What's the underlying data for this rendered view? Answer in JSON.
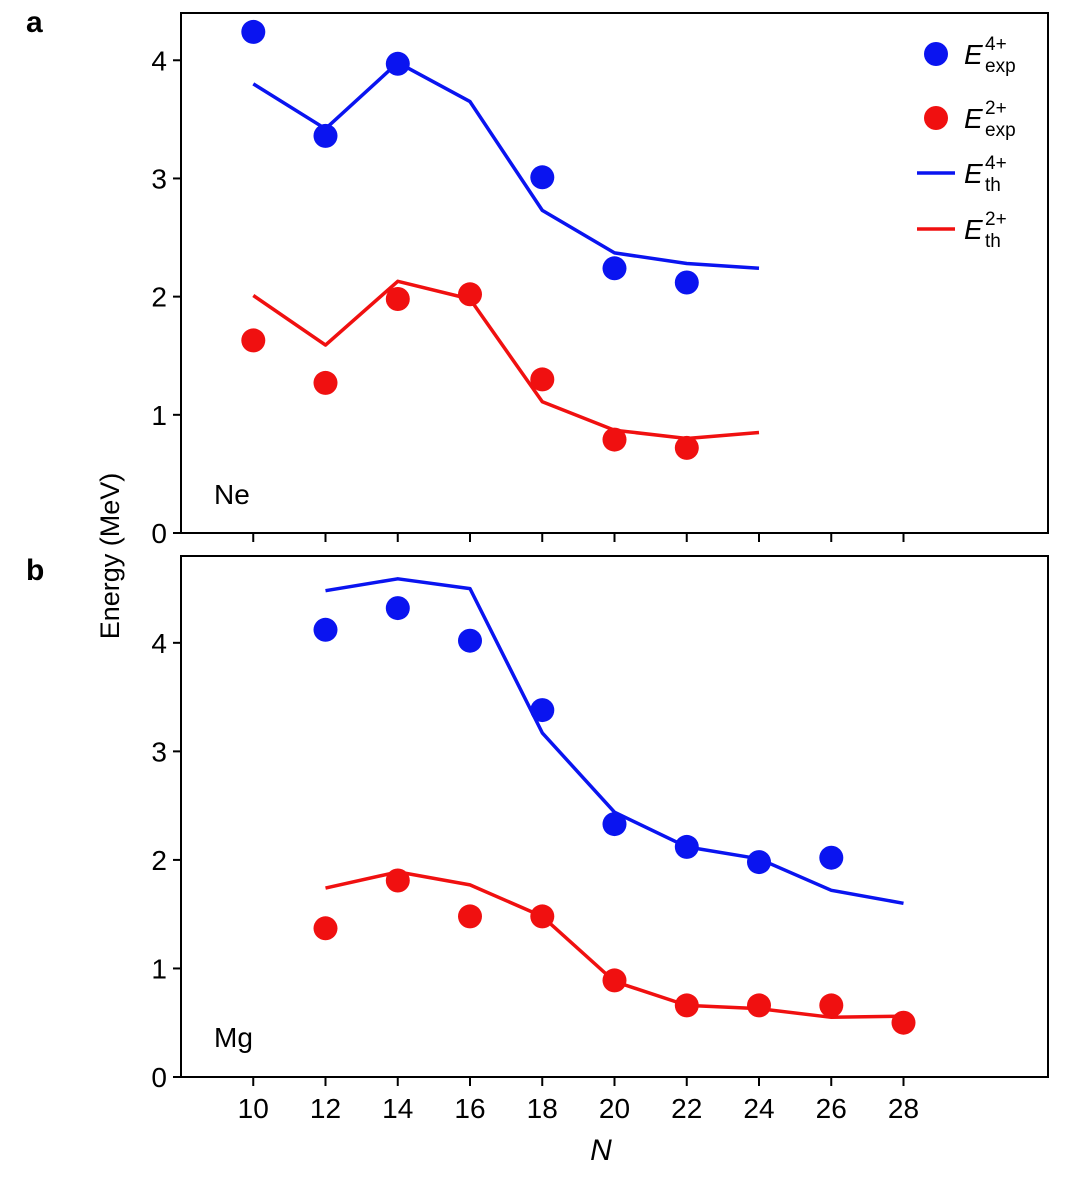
{
  "chart_data": {
    "type": "line",
    "shared_ylabel": "Energy (MeV)",
    "shared_xlabel": "N",
    "xlim": [
      8,
      32
    ],
    "x_ticks": [
      10,
      12,
      14,
      16,
      18,
      20,
      22,
      24,
      26,
      28
    ],
    "legend": {
      "placement": "top-right",
      "entries": [
        {
          "marker": "circle",
          "color": "#0a14f0",
          "main": "E",
          "sup": "4+",
          "sub": "exp"
        },
        {
          "marker": "circle",
          "color": "#f01010",
          "main": "E",
          "sup": "2+",
          "sub": "exp"
        },
        {
          "marker": "line",
          "color": "#0a14f0",
          "main": "E",
          "sup": "4+",
          "sub": "th"
        },
        {
          "marker": "line",
          "color": "#f01010",
          "main": "E",
          "sup": "2+",
          "sub": "th"
        }
      ]
    },
    "panels": [
      {
        "letter": "a",
        "label": "Ne",
        "ylim": [
          0,
          4.4
        ],
        "y_ticks": [
          0,
          1,
          2,
          3,
          4
        ],
        "series": [
          {
            "name": "E4+ exp",
            "kind": "scatter",
            "color": "#0a14f0",
            "x": [
              10,
              12,
              14,
              18,
              20,
              22
            ],
            "y": [
              4.24,
              3.36,
              3.97,
              3.01,
              2.24,
              2.12
            ]
          },
          {
            "name": "E2+ exp",
            "kind": "scatter",
            "color": "#f01010",
            "x": [
              10,
              12,
              14,
              16,
              18,
              20,
              22
            ],
            "y": [
              1.63,
              1.27,
              1.98,
              2.02,
              1.3,
              0.79,
              0.72
            ]
          },
          {
            "name": "E4+ th",
            "kind": "line",
            "color": "#0a14f0",
            "x": [
              10,
              12,
              14,
              16,
              18,
              20,
              22,
              24
            ],
            "y": [
              3.8,
              3.42,
              3.98,
              3.65,
              2.73,
              2.37,
              2.28,
              2.24
            ]
          },
          {
            "name": "E2+ th",
            "kind": "line",
            "color": "#f01010",
            "x": [
              10,
              12,
              14,
              16,
              18,
              20,
              22,
              24
            ],
            "y": [
              2.01,
              1.59,
              2.13,
              1.98,
              1.11,
              0.87,
              0.8,
              0.85
            ]
          }
        ]
      },
      {
        "letter": "b",
        "label": "Mg",
        "ylim": [
          0,
          4.8
        ],
        "y_ticks": [
          0,
          1,
          2,
          3,
          4
        ],
        "series": [
          {
            "name": "E4+ exp",
            "kind": "scatter",
            "color": "#0a14f0",
            "x": [
              12,
              14,
              16,
              18,
              20,
              22,
              24,
              26
            ],
            "y": [
              4.12,
              4.32,
              4.02,
              3.38,
              2.33,
              2.12,
              1.98,
              2.02
            ]
          },
          {
            "name": "E2+ exp",
            "kind": "scatter",
            "color": "#f01010",
            "x": [
              12,
              14,
              16,
              18,
              20,
              22,
              24,
              26,
              28
            ],
            "y": [
              1.37,
              1.81,
              1.48,
              1.48,
              0.89,
              0.66,
              0.66,
              0.66,
              0.5
            ]
          },
          {
            "name": "E4+ th",
            "kind": "line",
            "color": "#0a14f0",
            "x": [
              12,
              14,
              16,
              18,
              20,
              22,
              24,
              26,
              28
            ],
            "y": [
              4.48,
              4.59,
              4.5,
              3.17,
              2.44,
              2.12,
              2.01,
              1.72,
              1.6
            ]
          },
          {
            "name": "E2+ th",
            "kind": "line",
            "color": "#f01010",
            "x": [
              12,
              14,
              16,
              18,
              20,
              22,
              24,
              26,
              28
            ],
            "y": [
              1.74,
              1.89,
              1.77,
              1.48,
              0.88,
              0.66,
              0.63,
              0.55,
              0.56
            ]
          }
        ]
      }
    ]
  }
}
